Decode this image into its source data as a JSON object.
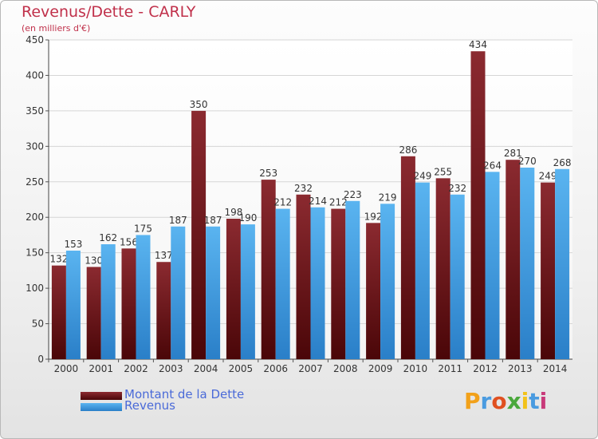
{
  "header": {
    "title": "Revenus/Dette - CARLY",
    "subtitle": "(en milliers d'€)"
  },
  "legend": {
    "items": [
      {
        "label": "Montant de la Dette",
        "color": "#6b0f14"
      },
      {
        "label": "Revenus",
        "color": "#3a9ae0"
      }
    ]
  },
  "logo": {
    "text": "Proxiti",
    "colors": [
      "#f2a11a",
      "#4a9be0",
      "#e05020",
      "#4aa83c",
      "#f2c21a",
      "#4a9be0",
      "#c83a7a"
    ]
  },
  "chart_data": {
    "type": "bar",
    "title": "Revenus/Dette - CARLY",
    "ylabel": "(en milliers d'€)",
    "xlabel": "",
    "categories": [
      "2000",
      "2001",
      "2002",
      "2003",
      "2004",
      "2005",
      "2006",
      "2007",
      "2008",
      "2009",
      "2010",
      "2011",
      "2012",
      "2013",
      "2014"
    ],
    "series": [
      {
        "name": "Montant de la Dette",
        "color": "#6b0f14",
        "values": [
          132,
          130,
          156,
          137,
          350,
          198,
          253,
          232,
          212,
          192,
          286,
          255,
          434,
          281,
          249
        ]
      },
      {
        "name": "Revenus",
        "color": "#3a9ae0",
        "values": [
          153,
          162,
          175,
          187,
          187,
          190,
          212,
          214,
          223,
          219,
          249,
          232,
          264,
          270,
          268
        ]
      }
    ],
    "ylim": [
      0,
      450
    ],
    "yticks": [
      0,
      50,
      100,
      150,
      200,
      250,
      300,
      350,
      400,
      450
    ],
    "grid": true,
    "legend_position": "bottom-left"
  }
}
